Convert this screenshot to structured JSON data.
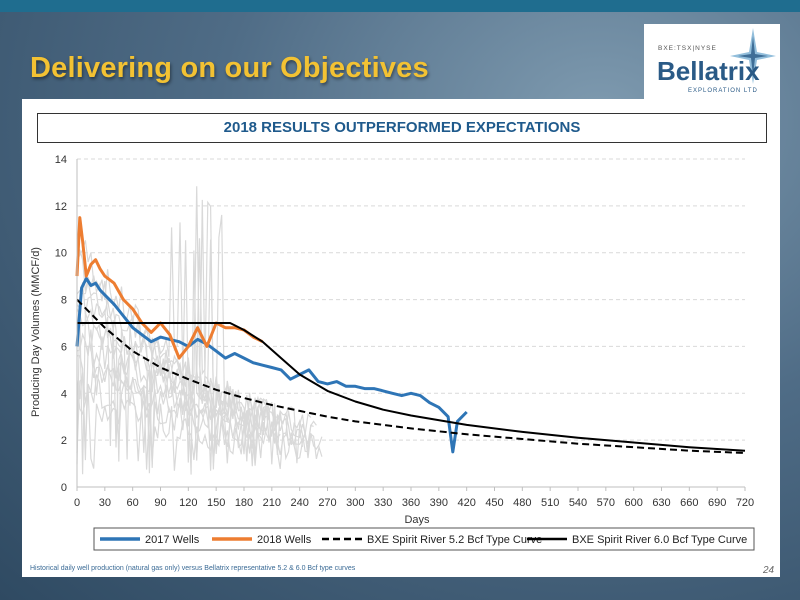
{
  "slide": {
    "title": "Delivering on our Objectives",
    "banner": "2018 RESULTS OUTPERFORMED EXPECTATIONS",
    "footnote": "Historical daily well production (natural gas only) versus Bellatrix representative 5.2 & 6.0 Bcf type curves",
    "page_number": "24"
  },
  "logo": {
    "exchange": "BXE:TSX|NYSE",
    "name": "Bellatrix",
    "subtitle": "EXPLORATION LTD"
  },
  "colors": {
    "title": "#f3c233",
    "wells_2017": "#2e75b6",
    "wells_2018": "#ed7d31",
    "type_curve": "#000000",
    "individual_wells": "#d9d9d9"
  },
  "chart_data": {
    "type": "line",
    "title": "",
    "xlabel": "Days",
    "ylabel": "Producing Day Volumes (MMCF/d)",
    "xlim": [
      0,
      720
    ],
    "ylim": [
      0,
      14
    ],
    "xticks": [
      0,
      30,
      60,
      90,
      120,
      150,
      180,
      210,
      240,
      270,
      300,
      330,
      360,
      390,
      420,
      450,
      480,
      510,
      540,
      570,
      600,
      630,
      660,
      690,
      720
    ],
    "yticks": [
      0,
      2,
      4,
      6,
      8,
      10,
      12,
      14
    ],
    "grid": "horizontal",
    "legend_position": "bottom",
    "series": [
      {
        "name": "2017 Wells",
        "style": "solid-thick",
        "color": "#2e75b6",
        "x": [
          0,
          5,
          10,
          15,
          20,
          25,
          30,
          40,
          50,
          60,
          70,
          80,
          90,
          100,
          110,
          120,
          130,
          140,
          150,
          160,
          170,
          180,
          190,
          200,
          210,
          220,
          230,
          240,
          250,
          260,
          270,
          280,
          290,
          300,
          310,
          320,
          330,
          340,
          350,
          360,
          370,
          380,
          390,
          400,
          405,
          410,
          420
        ],
        "y": [
          6.0,
          8.5,
          8.9,
          8.6,
          8.7,
          8.4,
          8.2,
          7.8,
          7.3,
          6.8,
          6.5,
          6.2,
          6.4,
          6.3,
          6.2,
          6.0,
          6.3,
          6.1,
          5.8,
          5.5,
          5.7,
          5.5,
          5.3,
          5.2,
          5.1,
          5.0,
          4.6,
          4.8,
          5.0,
          4.5,
          4.4,
          4.5,
          4.3,
          4.3,
          4.2,
          4.2,
          4.1,
          4.0,
          3.9,
          4.0,
          3.9,
          3.6,
          3.4,
          3.0,
          1.5,
          2.8,
          3.2
        ]
      },
      {
        "name": "2018 Wells",
        "style": "solid-thick",
        "color": "#ed7d31",
        "x": [
          0,
          3,
          6,
          10,
          15,
          20,
          25,
          30,
          40,
          50,
          60,
          70,
          80,
          90,
          100,
          110,
          120,
          130,
          140,
          150,
          160,
          170,
          180,
          190,
          200
        ],
        "y": [
          9.0,
          11.5,
          10.5,
          9.0,
          9.5,
          9.7,
          9.3,
          9.0,
          8.7,
          8.0,
          7.6,
          7.0,
          6.6,
          7.0,
          6.5,
          5.5,
          6.0,
          6.8,
          6.0,
          7.0,
          6.8,
          6.8,
          6.7,
          6.4,
          6.2
        ]
      },
      {
        "name": "BXE Spirit River 5.2 Bcf Type Curve",
        "style": "dashed",
        "color": "#000000",
        "x": [
          0,
          30,
          60,
          90,
          120,
          150,
          180,
          210,
          240,
          270,
          300,
          360,
          420,
          480,
          540,
          600,
          660,
          720
        ],
        "y": [
          8.0,
          6.8,
          5.8,
          5.1,
          4.6,
          4.15,
          3.8,
          3.5,
          3.25,
          3.0,
          2.8,
          2.5,
          2.25,
          2.05,
          1.85,
          1.7,
          1.55,
          1.45
        ]
      },
      {
        "name": "BXE Spirit River 6.0 Bcf Type Curve",
        "style": "solid",
        "color": "#000000",
        "x": [
          0,
          30,
          60,
          90,
          120,
          150,
          165,
          180,
          200,
          220,
          240,
          270,
          300,
          330,
          360,
          420,
          480,
          540,
          600,
          660,
          720
        ],
        "y": [
          7.0,
          7.0,
          7.0,
          7.0,
          7.0,
          7.0,
          7.0,
          6.7,
          6.2,
          5.5,
          4.8,
          4.1,
          3.65,
          3.3,
          3.05,
          2.65,
          2.35,
          2.1,
          1.9,
          1.7,
          1.55
        ]
      }
    ]
  }
}
